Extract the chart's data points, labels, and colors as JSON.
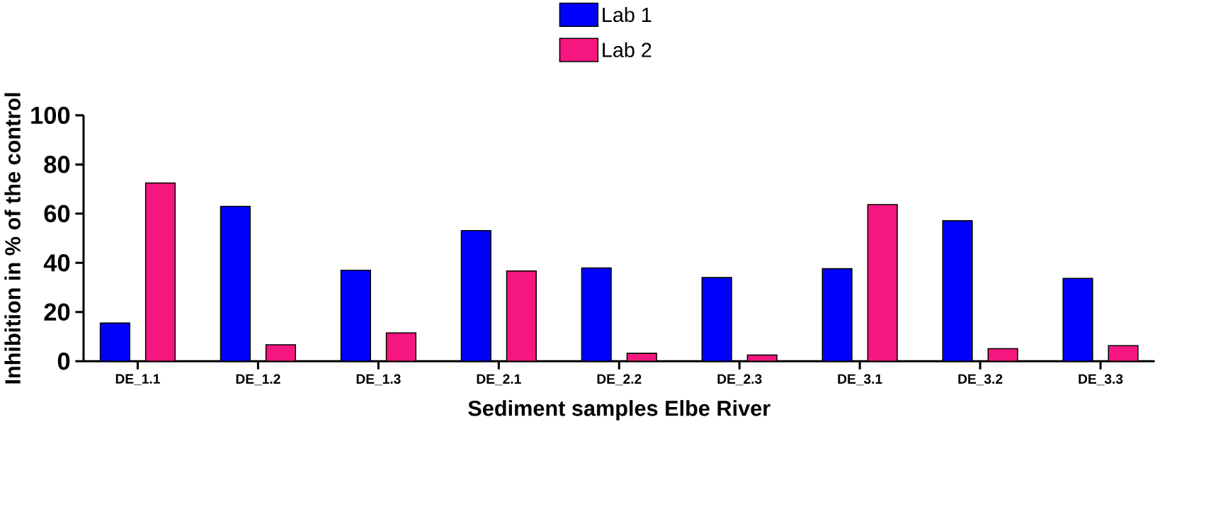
{
  "chart_data": {
    "type": "bar",
    "xlabel": "Sediment samples Elbe River",
    "ylabel": "Inhibition in % of the control",
    "categories": [
      "DE_1.1",
      "DE_1.2",
      "DE_1.3",
      "DE_2.1",
      "DE_2.2",
      "DE_2.3",
      "DE_3.1",
      "DE_3.2",
      "DE_3.3"
    ],
    "series": [
      {
        "name": "Lab 1",
        "color": "#0000ff",
        "values": [
          15.5,
          63.0,
          37.0,
          53.1,
          37.9,
          34.0,
          37.6,
          57.1,
          33.7
        ]
      },
      {
        "name": "Lab 2",
        "color": "#f5177f",
        "values": [
          72.5,
          6.7,
          11.5,
          36.7,
          3.2,
          2.5,
          63.7,
          5.1,
          6.3
        ]
      }
    ],
    "ylim": [
      0,
      100
    ],
    "yticks": [
      0,
      20,
      40,
      60,
      80,
      100
    ],
    "legend": "top"
  }
}
